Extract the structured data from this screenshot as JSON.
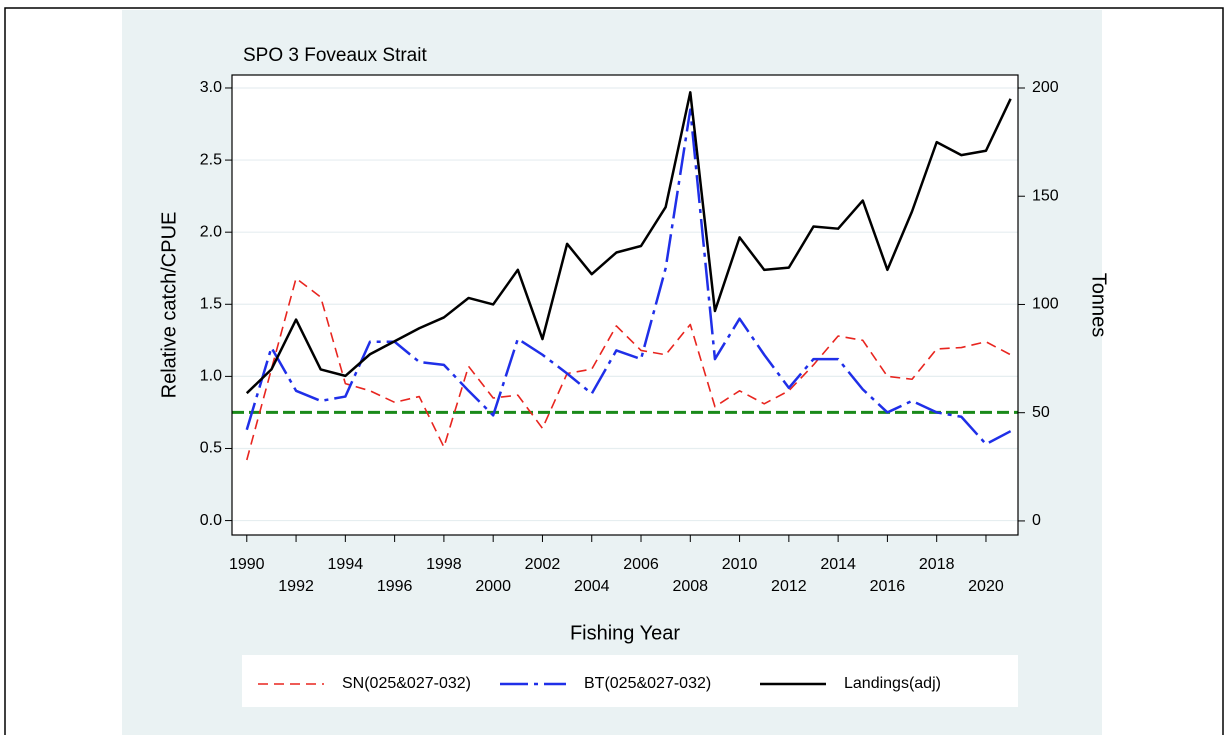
{
  "chart_data": {
    "type": "line",
    "title": "SPO 3 Foveaux Strait",
    "x_label": "Fishing Year",
    "y_label": "Relative catch/CPUE",
    "y2_label": "Tonnes",
    "x": [
      1990,
      1991,
      1992,
      1993,
      1994,
      1995,
      1996,
      1997,
      1998,
      1999,
      2000,
      2001,
      2002,
      2003,
      2004,
      2005,
      2006,
      2007,
      2008,
      2009,
      2010,
      2011,
      2012,
      2013,
      2014,
      2015,
      2016,
      2017,
      2018,
      2019,
      2020,
      2021
    ],
    "series": [
      {
        "name": "SN(025&027-032)",
        "color": "#e8251f",
        "dash": "10,6",
        "width": 1.6,
        "values": [
          0.42,
          1.05,
          1.68,
          1.55,
          0.95,
          0.9,
          0.82,
          0.86,
          0.51,
          1.07,
          0.85,
          0.87,
          0.64,
          1.02,
          1.05,
          1.35,
          1.18,
          1.15,
          1.36,
          0.79,
          0.9,
          0.81,
          0.9,
          1.08,
          1.28,
          1.25,
          1.0,
          0.98,
          1.19,
          1.2,
          1.24,
          1.15
        ]
      },
      {
        "name": "BT(025&027-032)",
        "color": "#1f2fe8",
        "dash": "28,6,4,6",
        "width": 2.5,
        "values": [
          0.63,
          1.2,
          0.9,
          0.83,
          0.86,
          1.24,
          1.24,
          1.1,
          1.08,
          0.9,
          0.73,
          1.26,
          1.15,
          1.02,
          0.88,
          1.18,
          1.12,
          1.75,
          2.85,
          1.12,
          1.4,
          1.15,
          0.92,
          1.12,
          1.12,
          0.91,
          0.75,
          0.83,
          0.75,
          0.72,
          0.53,
          0.62
        ]
      },
      {
        "name": "Landings(adj)",
        "color": "#000000",
        "dash": "none",
        "width": 2.5,
        "axis": "y2",
        "values": [
          59,
          70,
          93,
          70,
          67,
          77,
          83,
          89,
          94,
          103,
          100,
          116,
          84,
          128,
          114,
          124,
          127,
          145,
          198,
          97,
          131,
          116,
          117,
          136,
          135,
          148,
          116,
          143,
          175,
          169,
          171,
          195
        ]
      }
    ],
    "xlim": [
      1989.4,
      2021.3
    ],
    "xticks": [
      1990,
      1992,
      1994,
      1996,
      1998,
      2000,
      2002,
      2004,
      2006,
      2008,
      2010,
      2012,
      2014,
      2016,
      2018,
      2020
    ],
    "ylim": [
      -0.1,
      3.09
    ],
    "yticks": [
      {
        "value": 0,
        "label": "0.0"
      },
      0.5,
      {
        "value": 1,
        "label": "1.0"
      },
      1.5,
      {
        "value": 2,
        "label": "2.0"
      },
      2.5,
      {
        "value": 3,
        "label": "3.0"
      }
    ],
    "y2lim": [
      -6.5,
      206
    ],
    "y2ticks": [
      0,
      50,
      100,
      150,
      200
    ],
    "grid": true,
    "reference_line": {
      "value": 0.75,
      "color": "#1a8a1a"
    }
  }
}
